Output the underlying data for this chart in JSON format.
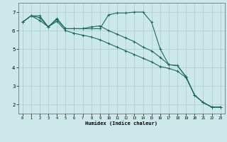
{
  "xlabel": "Humidex (Indice chaleur)",
  "ylabel": "",
  "bg_color": "#cce8e8",
  "grid_color": "#aacccc",
  "line_color": "#1a6b5a",
  "xlim": [
    -0.5,
    23.5
  ],
  "ylim": [
    1.5,
    7.5
  ],
  "yticks": [
    2,
    3,
    4,
    5,
    6,
    7
  ],
  "xticks": [
    0,
    1,
    2,
    3,
    4,
    5,
    6,
    7,
    8,
    9,
    10,
    11,
    12,
    13,
    14,
    15,
    16,
    17,
    18,
    19,
    20,
    21,
    22,
    23
  ],
  "series1_x": [
    0,
    1,
    2,
    3,
    4,
    5,
    6,
    7,
    8,
    9,
    10,
    11,
    12,
    13,
    14,
    15,
    16,
    17,
    18,
    19,
    20,
    21,
    22,
    23
  ],
  "series1_y": [
    6.45,
    6.8,
    6.8,
    6.2,
    6.65,
    6.1,
    6.1,
    6.1,
    6.1,
    6.1,
    6.85,
    6.95,
    6.95,
    7.0,
    7.0,
    6.45,
    5.0,
    4.15,
    4.1,
    3.5,
    2.5,
    2.1,
    1.85,
    1.85
  ],
  "series2_x": [
    0,
    1,
    2,
    3,
    4,
    5,
    6,
    7,
    8,
    9,
    10,
    11,
    12,
    13,
    14,
    15,
    16,
    17,
    18,
    19,
    20,
    21,
    22,
    23
  ],
  "series2_y": [
    6.45,
    6.8,
    6.7,
    6.2,
    6.6,
    6.1,
    6.1,
    6.1,
    6.2,
    6.25,
    6.0,
    5.8,
    5.6,
    5.4,
    5.1,
    4.9,
    4.55,
    4.15,
    4.1,
    3.5,
    2.5,
    2.1,
    1.85,
    1.85
  ],
  "series3_x": [
    0,
    1,
    2,
    3,
    4,
    5,
    6,
    7,
    8,
    9,
    10,
    11,
    12,
    13,
    14,
    15,
    16,
    17,
    18,
    19,
    20,
    21,
    22,
    23
  ],
  "series3_y": [
    6.45,
    6.8,
    6.55,
    6.2,
    6.5,
    6.0,
    5.85,
    5.75,
    5.65,
    5.5,
    5.3,
    5.1,
    4.9,
    4.7,
    4.5,
    4.3,
    4.05,
    3.95,
    3.8,
    3.45,
    2.5,
    2.1,
    1.85,
    1.85
  ]
}
